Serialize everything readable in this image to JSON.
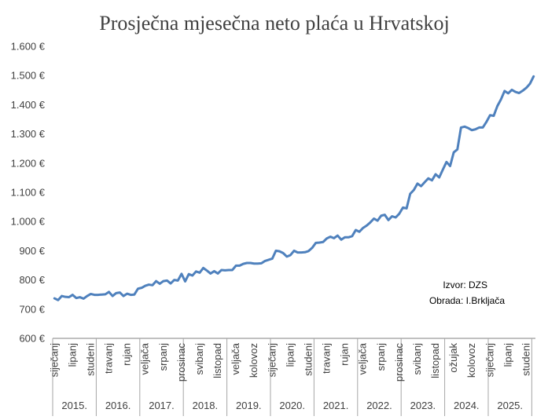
{
  "chart_data": {
    "type": "line",
    "title": "Prosječna mjesečna neto plaća u Hrvatskoj",
    "xlabel": "",
    "ylabel": "",
    "ylim": [
      600,
      1600
    ],
    "ytick_values": [
      600,
      700,
      800,
      900,
      1000,
      1100,
      1200,
      1300,
      1400,
      1500,
      1600
    ],
    "ytick_labels": [
      "600 €",
      "700 €",
      "800 €",
      "900 €",
      "1.000 €",
      "1.100 €",
      "1.200 €",
      "1.300 €",
      "1.400 €",
      "1.500 €",
      "1.600 €"
    ],
    "grid": false,
    "legend": "none",
    "line_color": "#4f81bd",
    "years": [
      "2015.",
      "2016.",
      "2017.",
      "2018.",
      "2019.",
      "2020.",
      "2021.",
      "2022.",
      "2023.",
      "2024.",
      "2025."
    ],
    "month_tick_labels": [
      {
        "index": 0,
        "label": "siječanj"
      },
      {
        "index": 5,
        "label": "lipanj"
      },
      {
        "index": 10,
        "label": "studeni"
      },
      {
        "index": 15,
        "label": "travanj"
      },
      {
        "index": 20,
        "label": "rujan"
      },
      {
        "index": 25,
        "label": "veljača"
      },
      {
        "index": 30,
        "label": "srpanj"
      },
      {
        "index": 35,
        "label": "prosinac"
      },
      {
        "index": 40,
        "label": "svibanj"
      },
      {
        "index": 45,
        "label": "listopad"
      },
      {
        "index": 50,
        "label": "veljača"
      },
      {
        "index": 55,
        "label": "kolovoz"
      },
      {
        "index": 60,
        "label": "siječanj"
      },
      {
        "index": 65,
        "label": "lipanj"
      },
      {
        "index": 70,
        "label": "studeni"
      },
      {
        "index": 75,
        "label": "travanj"
      },
      {
        "index": 80,
        "label": "rujan"
      },
      {
        "index": 85,
        "label": "veljača"
      },
      {
        "index": 90,
        "label": "srpanj"
      },
      {
        "index": 95,
        "label": "prosinac"
      },
      {
        "index": 100,
        "label": "svibanj"
      },
      {
        "index": 105,
        "label": "listopad"
      },
      {
        "index": 110,
        "label": "ožujak"
      },
      {
        "index": 115,
        "label": "kolovoz"
      },
      {
        "index": 120,
        "label": "siječanj"
      },
      {
        "index": 125,
        "label": "lipanj"
      },
      {
        "index": 130,
        "label": "studeni"
      }
    ],
    "series": [
      {
        "values": [
          737,
          731,
          745,
          742,
          741,
          749,
          738,
          741,
          736,
          745,
          752,
          749,
          749,
          750,
          751,
          759,
          745,
          755,
          757,
          745,
          753,
          749,
          750,
          770,
          773,
          780,
          784,
          782,
          796,
          787,
          796,
          798,
          788,
          800,
          798,
          821,
          795,
          820,
          815,
          829,
          825,
          841,
          832,
          822,
          830,
          822,
          834,
          833,
          834,
          834,
          849,
          849,
          855,
          858,
          858,
          856,
          856,
          857,
          865,
          869,
          873,
          900,
          898,
          892,
          880,
          885,
          900,
          894,
          894,
          895,
          899,
          910,
          927,
          928,
          930,
          942,
          948,
          943,
          952,
          938,
          946,
          946,
          950,
          971,
          965,
          978,
          986,
          997,
          1010,
          1003,
          1020,
          1023,
          1005,
          1018,
          1014,
          1027,
          1048,
          1045,
          1095,
          1108,
          1130,
          1121,
          1135,
          1148,
          1141,
          1162,
          1151,
          1178,
          1204,
          1190,
          1237,
          1247,
          1322,
          1325,
          1320,
          1313,
          1316,
          1322,
          1322,
          1341,
          1364,
          1362,
          1395,
          1418,
          1447,
          1439,
          1451,
          1444,
          1440,
          1448,
          1458,
          1472,
          1497
        ]
      }
    ]
  },
  "annotations": {
    "source": "Izvor: DZS",
    "author": "Obrada: I.Brkljača"
  }
}
